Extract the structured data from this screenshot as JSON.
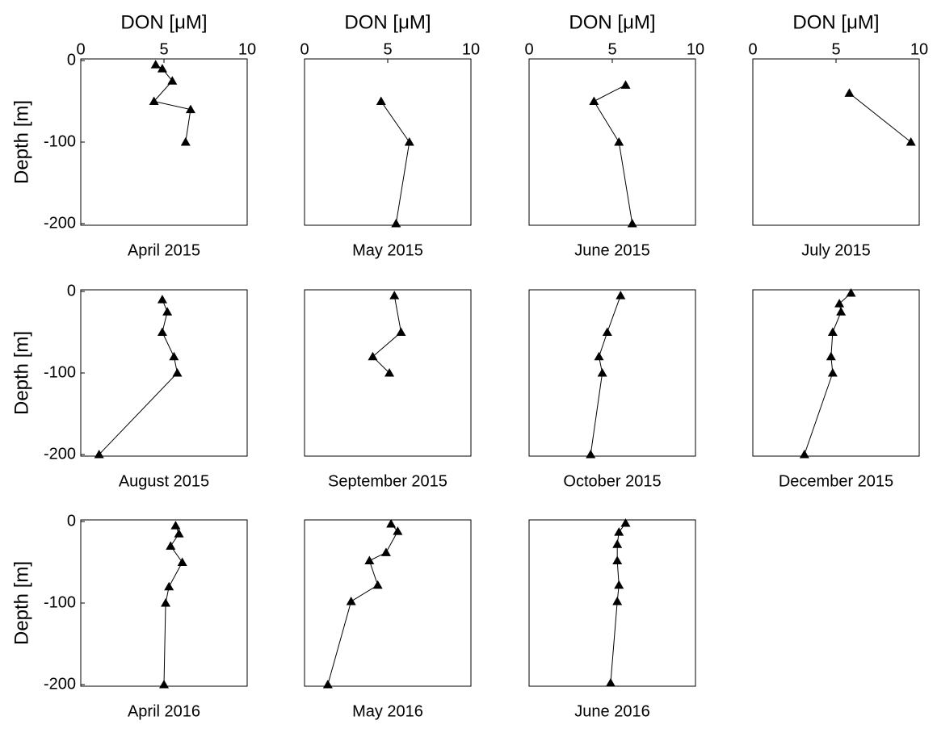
{
  "chart_data": [
    {
      "type": "line",
      "title": "April 2015",
      "xlabel": "DON [μM]",
      "ylabel": "Depth [m]",
      "xlim": [
        0,
        10
      ],
      "ylim": [
        -202,
        2
      ],
      "xticks": [
        0,
        5,
        10
      ],
      "yticks": [
        0,
        -100,
        -200
      ],
      "color": "#000000",
      "marker": "triangle",
      "x": [
        4.5,
        4.9,
        5.5,
        4.4,
        6.6,
        6.3
      ],
      "values": [
        -5,
        -10,
        -25,
        -50,
        -60,
        -100
      ]
    },
    {
      "type": "line",
      "title": "May 2015",
      "xlabel": "DON [μM]",
      "xlim": [
        0,
        10
      ],
      "ylim": [
        -202,
        2
      ],
      "xticks": [
        0,
        5,
        10
      ],
      "color": "#000000",
      "marker": "triangle",
      "x": [
        4.6,
        6.3,
        5.5
      ],
      "values": [
        -50,
        -100,
        -200
      ]
    },
    {
      "type": "line",
      "title": "June 2015",
      "xlabel": "DON [μM]",
      "xlim": [
        0,
        10
      ],
      "ylim": [
        -202,
        2
      ],
      "xticks": [
        0,
        5,
        10
      ],
      "color": "#000000",
      "marker": "triangle",
      "x": [
        5.8,
        3.9,
        5.4,
        6.2
      ],
      "values": [
        -30,
        -50,
        -100,
        -200
      ]
    },
    {
      "type": "line",
      "title": "July 2015",
      "xlabel": "DON [μM]",
      "xlim": [
        0,
        10
      ],
      "ylim": [
        -202,
        2
      ],
      "xticks": [
        0,
        5,
        10
      ],
      "color": "#000000",
      "marker": "triangle",
      "x": [
        5.8,
        9.5
      ],
      "values": [
        -40,
        -100
      ]
    },
    {
      "type": "line",
      "title": "August 2015",
      "ylabel": "Depth [m]",
      "xlim": [
        0,
        10
      ],
      "ylim": [
        -202,
        2
      ],
      "yticks": [
        0,
        -100,
        -200
      ],
      "color": "#000000",
      "marker": "triangle",
      "x": [
        4.9,
        5.2,
        4.9,
        5.6,
        5.8,
        1.1
      ],
      "values": [
        -10,
        -25,
        -50,
        -80,
        -100,
        -200
      ]
    },
    {
      "type": "line",
      "title": "September 2015",
      "xlim": [
        0,
        10
      ],
      "ylim": [
        -202,
        2
      ],
      "color": "#000000",
      "marker": "triangle",
      "x": [
        5.4,
        5.8,
        4.1,
        5.1
      ],
      "values": [
        -5,
        -50,
        -80,
        -100
      ]
    },
    {
      "type": "line",
      "title": "October 2015",
      "xlim": [
        0,
        10
      ],
      "ylim": [
        -202,
        2
      ],
      "color": "#000000",
      "marker": "triangle",
      "x": [
        5.5,
        4.7,
        4.2,
        4.4,
        3.7
      ],
      "values": [
        -5,
        -50,
        -80,
        -100,
        -200
      ]
    },
    {
      "type": "line",
      "title": "December 2015",
      "xlim": [
        0,
        10
      ],
      "ylim": [
        -202,
        2
      ],
      "color": "#000000",
      "marker": "triangle",
      "x": [
        5.9,
        5.2,
        5.3,
        4.8,
        4.7,
        4.8,
        3.1
      ],
      "values": [
        -2,
        -15,
        -25,
        -50,
        -80,
        -100,
        -200
      ]
    },
    {
      "type": "line",
      "title": "April 2016",
      "ylabel": "Depth [m]",
      "xlim": [
        0,
        10
      ],
      "ylim": [
        -202,
        2
      ],
      "yticks": [
        0,
        -100,
        -200
      ],
      "color": "#000000",
      "marker": "triangle",
      "x": [
        5.7,
        5.9,
        5.4,
        6.1,
        5.3,
        5.1,
        5.0
      ],
      "values": [
        -5,
        -15,
        -30,
        -50,
        -80,
        -100,
        -200
      ]
    },
    {
      "type": "line",
      "title": "May 2016",
      "xlim": [
        0,
        10
      ],
      "ylim": [
        -202,
        2
      ],
      "color": "#000000",
      "marker": "triangle",
      "x": [
        5.2,
        5.6,
        4.9,
        3.9,
        4.4,
        2.8,
        1.4
      ],
      "values": [
        -3,
        -12,
        -38,
        -48,
        -78,
        -98,
        -200
      ]
    },
    {
      "type": "line",
      "title": "June 2016",
      "xlim": [
        0,
        10
      ],
      "ylim": [
        -202,
        2
      ],
      "color": "#000000",
      "marker": "triangle",
      "x": [
        5.8,
        5.4,
        5.3,
        5.3,
        5.4,
        5.3,
        4.9
      ],
      "values": [
        -2,
        -13,
        -28,
        -48,
        -78,
        -98,
        -198
      ]
    }
  ]
}
